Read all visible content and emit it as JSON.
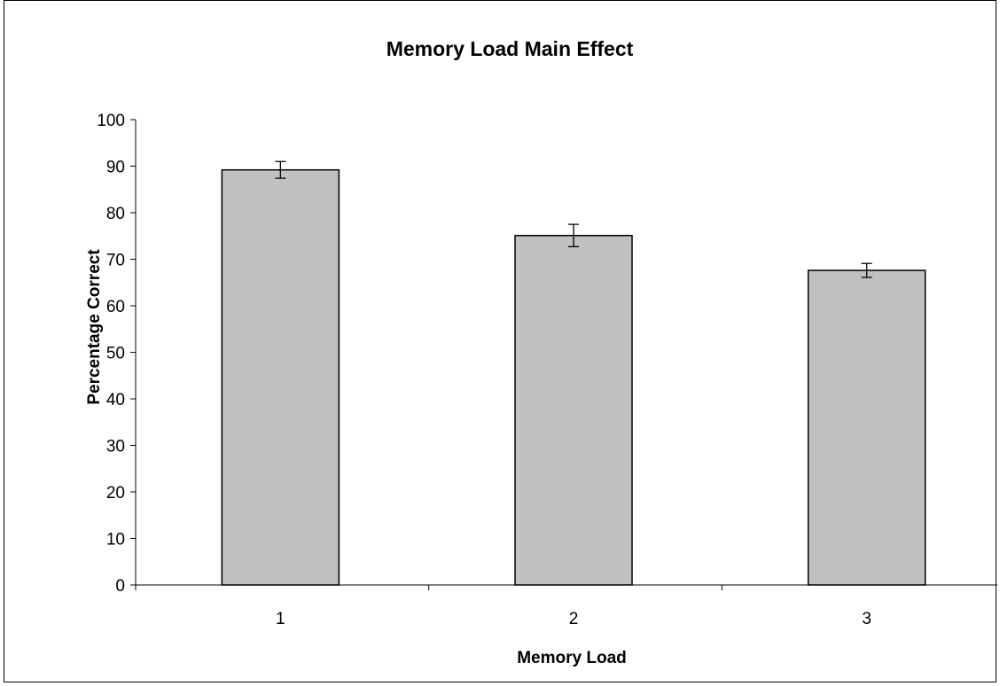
{
  "chart_data": {
    "type": "bar",
    "title": "Memory Load Main Effect",
    "xlabel": "Memory Load",
    "ylabel": "Percentage Correct",
    "categories": [
      "1",
      "2",
      "3"
    ],
    "values": [
      89.2,
      75.1,
      67.6
    ],
    "error": [
      1.8,
      2.4,
      1.5
    ],
    "ylim": [
      0,
      100
    ],
    "yticks": [
      0,
      10,
      20,
      30,
      40,
      50,
      60,
      70,
      80,
      90,
      100
    ],
    "grid": false,
    "legend": "none",
    "bar_color": "#c0c0c0"
  }
}
